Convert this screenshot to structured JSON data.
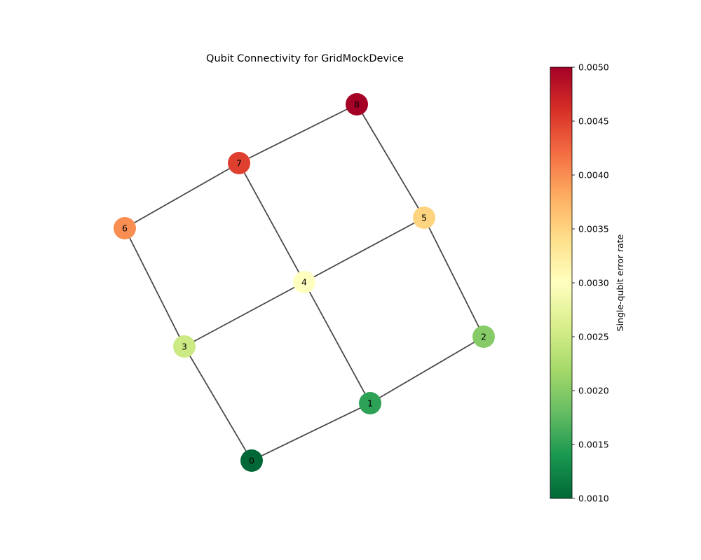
{
  "title": "Qubit Connectivity for GridMockDevice",
  "colorbar": {
    "label": "Single-qubit error rate",
    "min": 0.001,
    "max": 0.005,
    "ticks": [
      "0.0010",
      "0.0015",
      "0.0020",
      "0.0025",
      "0.0030",
      "0.0035",
      "0.0040",
      "0.0045",
      "0.0050"
    ],
    "colormap": "RdYlGn_r"
  },
  "nodes": [
    {
      "id": "0",
      "error_rate": 0.001
    },
    {
      "id": "1",
      "error_rate": 0.0015
    },
    {
      "id": "2",
      "error_rate": 0.002
    },
    {
      "id": "3",
      "error_rate": 0.0025
    },
    {
      "id": "4",
      "error_rate": 0.003
    },
    {
      "id": "5",
      "error_rate": 0.0035
    },
    {
      "id": "6",
      "error_rate": 0.004
    },
    {
      "id": "7",
      "error_rate": 0.0045
    },
    {
      "id": "8",
      "error_rate": 0.005
    }
  ],
  "edges": [
    [
      "0",
      "1"
    ],
    [
      "1",
      "2"
    ],
    [
      "3",
      "4"
    ],
    [
      "4",
      "5"
    ],
    [
      "6",
      "7"
    ],
    [
      "7",
      "8"
    ],
    [
      "0",
      "3"
    ],
    [
      "3",
      "6"
    ],
    [
      "1",
      "4"
    ],
    [
      "4",
      "7"
    ],
    [
      "2",
      "5"
    ],
    [
      "5",
      "8"
    ]
  ]
}
